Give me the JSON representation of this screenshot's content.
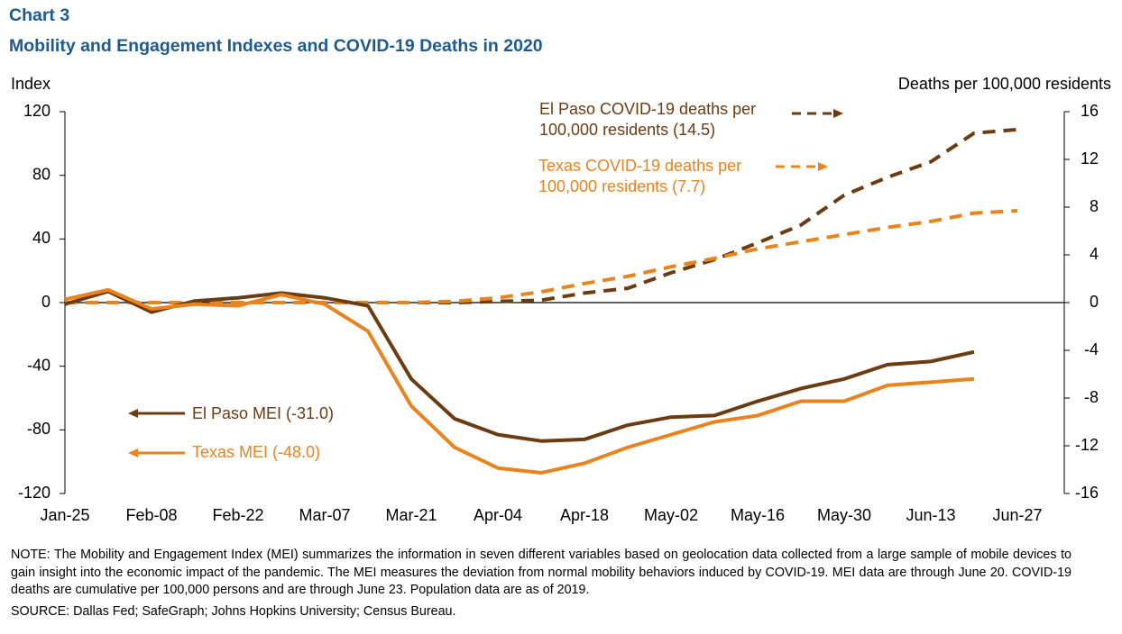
{
  "chart_data": {
    "type": "line",
    "title": "Chart 3",
    "subtitle": "Mobility and Engagement Indexes and COVID-19 Deaths in 2020",
    "y_label": "Index",
    "y2_label": "Deaths per 100,000 residents",
    "categories": [
      "Jan-25",
      null,
      "Feb-08",
      null,
      "Feb-22",
      null,
      "Mar-07",
      null,
      "Mar-21",
      null,
      "Apr-04",
      null,
      "Apr-18",
      null,
      "May-02",
      null,
      "May-16",
      null,
      "May-30",
      null,
      "Jun-13",
      null,
      "Jun-27"
    ],
    "ylim": [
      -120,
      120
    ],
    "yticks": [
      120,
      80,
      40,
      0,
      -40,
      -80,
      -120
    ],
    "y2lim": [
      -16,
      16
    ],
    "y2ticks": [
      16,
      12,
      8,
      4,
      0,
      -4,
      -8,
      -12,
      -16
    ],
    "series": [
      {
        "name": "El Paso COVID-19 deaths per 100,000 residents (14.5)",
        "color": "#6b3c12",
        "line_style": "dashed",
        "axis": "y2",
        "values": [
          0,
          0,
          0,
          0,
          0,
          0,
          0,
          0,
          0,
          0,
          0.1,
          0.2,
          0.8,
          1.2,
          2.5,
          3.6,
          5.0,
          6.5,
          9.0,
          10.5,
          11.8,
          14.2,
          14.5
        ]
      },
      {
        "name": "Texas COVID-19 deaths per 100,000 residents (7.7)",
        "color": "#e8831e",
        "line_style": "dashed",
        "axis": "y2",
        "values": [
          0,
          0,
          0,
          0,
          0,
          0,
          0,
          0,
          0,
          0.1,
          0.4,
          0.9,
          1.6,
          2.2,
          3.0,
          3.7,
          4.5,
          5.1,
          5.7,
          6.3,
          6.8,
          7.5,
          7.7
        ]
      },
      {
        "name": "El Paso MEI (-31.0)",
        "color": "#6b3c12",
        "line_style": "solid",
        "values": [
          -1,
          7,
          -6,
          1,
          3,
          6,
          3,
          -2,
          -48,
          -73,
          -83,
          -87,
          -86,
          -77,
          -72,
          -71,
          -62,
          -54,
          -48,
          -39,
          -37,
          -31,
          null
        ]
      },
      {
        "name": "Texas MEI (-48.0)",
        "color": "#e8831e",
        "line_style": "solid",
        "values": [
          2,
          8,
          -4,
          -1,
          -2,
          5,
          -1,
          -18,
          -65,
          -91,
          -104,
          -107,
          -101,
          -91,
          -83,
          -75,
          -71,
          -62,
          -62,
          -52,
          -50,
          -48,
          null
        ]
      }
    ],
    "note": "NOTE: The Mobility and Engagement Index (MEI) summarizes the information in seven different variables based on geolocation data collected from a large sample of mobile devices to gain insight into the economic impact of the pandemic. The MEI measures the deviation from normal mobility behaviors induced by COVID-19. MEI data are through June 20. COVID-19 deaths are cumulative per 100,000 persons and are through June 23. Population data are as of 2019.",
    "source": "SOURCE: Dallas Fed; SafeGraph; Johns Hopkins University; Census Bureau."
  }
}
